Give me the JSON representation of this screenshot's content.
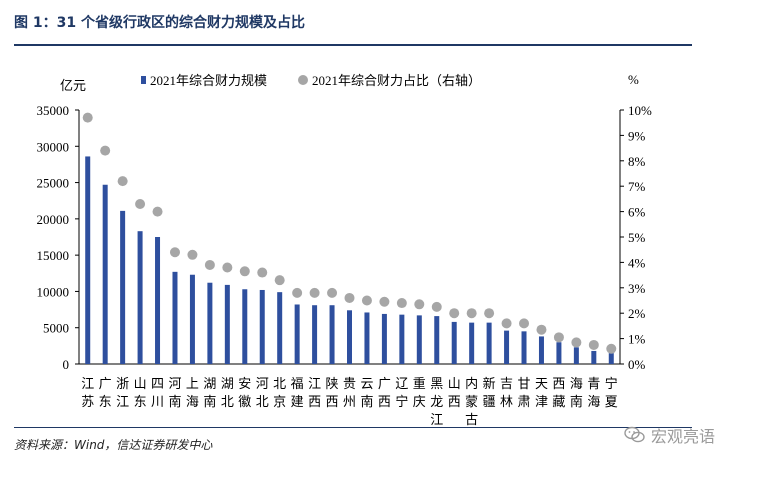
{
  "header": {
    "title": "图 1：31 个省级行政区的综合财力规模及占比"
  },
  "footer": {
    "source": "资料来源：Wind，信达证券研发中心",
    "watermark": "宏观亮语",
    "watermark_icon": "wechat-icon"
  },
  "chart_data": {
    "type": "bar",
    "left_axis_label": "亿元",
    "right_axis_label": "%",
    "ylim": [
      0,
      35000
    ],
    "y_ticks": [
      "0",
      "5000",
      "10000",
      "15000",
      "20000",
      "25000",
      "30000",
      "35000"
    ],
    "y2lim": [
      0,
      10
    ],
    "y2_ticks": [
      "0%",
      "1%",
      "2%",
      "3%",
      "4%",
      "5%",
      "6%",
      "7%",
      "8%",
      "9%",
      "10%"
    ],
    "grid": false,
    "legend_position": "top",
    "categories": [
      "江苏",
      "广东",
      "浙江",
      "山东",
      "四川",
      "河南",
      "上海",
      "湖南",
      "湖北",
      "安徽",
      "河北",
      "北京",
      "福建",
      "江西",
      "陕西",
      "贵州",
      "云南",
      "广西",
      "辽宁",
      "重庆",
      "黑龙江",
      "山西",
      "内蒙古",
      "新疆",
      "吉林",
      "甘肃",
      "天津",
      "西藏",
      "海南",
      "青海",
      "宁夏"
    ],
    "series": [
      {
        "name": "2021年综合财力规模",
        "kind": "bar",
        "axis": "left",
        "color": "#2e4f9e",
        "values": [
          28600,
          24700,
          21100,
          18300,
          17500,
          12700,
          12300,
          11200,
          10900,
          10300,
          10200,
          9900,
          8200,
          8100,
          8100,
          7400,
          7100,
          6900,
          6800,
          6700,
          6600,
          5800,
          5700,
          5700,
          4600,
          4500,
          3800,
          3000,
          2300,
          1800,
          1500
        ]
      },
      {
        "name": "2021年综合财力占比（右轴）",
        "kind": "scatter",
        "axis": "right",
        "color": "#a6a6a6",
        "values": [
          9.7,
          8.4,
          7.2,
          6.3,
          6.0,
          4.4,
          4.3,
          3.9,
          3.8,
          3.65,
          3.6,
          3.3,
          2.8,
          2.8,
          2.8,
          2.6,
          2.5,
          2.45,
          2.4,
          2.35,
          2.25,
          2.0,
          2.0,
          2.0,
          1.6,
          1.6,
          1.35,
          1.05,
          0.85,
          0.75,
          0.6
        ]
      }
    ]
  }
}
